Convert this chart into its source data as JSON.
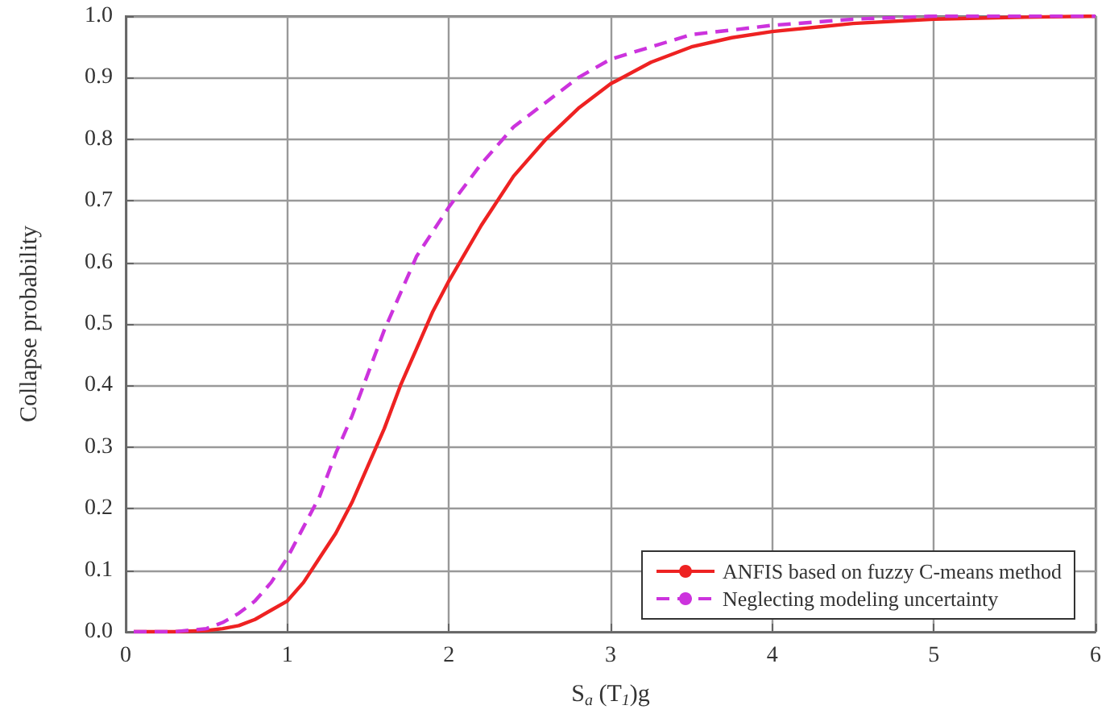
{
  "chart_data": {
    "type": "line",
    "xlabel": "S$_{a}$ (T$_{1}$)g",
    "ylabel": "Collapse probability",
    "xlim": [
      0,
      6
    ],
    "xticks": [
      0,
      1,
      2,
      3,
      4,
      5,
      6
    ],
    "ylim": [
      0,
      1
    ],
    "yticks": [
      {
        "value": 0,
        "label": "0.0"
      },
      0.1,
      0.2,
      0.3,
      0.4,
      0.5,
      0.6,
      0.7,
      0.8,
      0.9,
      {
        "value": 1,
        "label": "1.0"
      }
    ],
    "grid": true,
    "legend": "bottom right",
    "marker": "none",
    "series": [
      {
        "name": "ANFIS based on fuzzy C-means method",
        "color": "#ee2222",
        "line_style": "solid",
        "x": [
          0.05,
          0.3,
          0.5,
          0.6,
          0.7,
          0.8,
          0.9,
          1.0,
          1.1,
          1.2,
          1.3,
          1.4,
          1.5,
          1.6,
          1.7,
          1.8,
          1.9,
          2.0,
          2.2,
          2.4,
          2.6,
          2.8,
          3.0,
          3.25,
          3.5,
          3.75,
          4.0,
          4.5,
          5.0,
          5.5,
          6.0
        ],
        "values": [
          0,
          0,
          0.002,
          0.005,
          0.01,
          0.02,
          0.035,
          0.05,
          0.08,
          0.12,
          0.16,
          0.21,
          0.27,
          0.33,
          0.4,
          0.46,
          0.52,
          0.57,
          0.66,
          0.74,
          0.8,
          0.85,
          0.89,
          0.925,
          0.95,
          0.965,
          0.975,
          0.988,
          0.995,
          0.998,
          1.0
        ]
      },
      {
        "name": "Neglecting modeling uncertainty",
        "color": "#cc33dd",
        "line_style": "dashed",
        "x": [
          0.05,
          0.3,
          0.5,
          0.6,
          0.7,
          0.8,
          0.9,
          1.0,
          1.1,
          1.2,
          1.3,
          1.4,
          1.5,
          1.6,
          1.7,
          1.8,
          1.9,
          2.0,
          2.2,
          2.4,
          2.6,
          2.8,
          3.0,
          3.25,
          3.5,
          4.0,
          4.5,
          5.0,
          6.0
        ],
        "values": [
          0,
          0,
          0.005,
          0.015,
          0.03,
          0.05,
          0.08,
          0.12,
          0.17,
          0.22,
          0.29,
          0.35,
          0.42,
          0.49,
          0.55,
          0.61,
          0.65,
          0.69,
          0.76,
          0.82,
          0.86,
          0.9,
          0.93,
          0.95,
          0.97,
          0.985,
          0.995,
          1.0,
          1.0
        ]
      }
    ]
  }
}
